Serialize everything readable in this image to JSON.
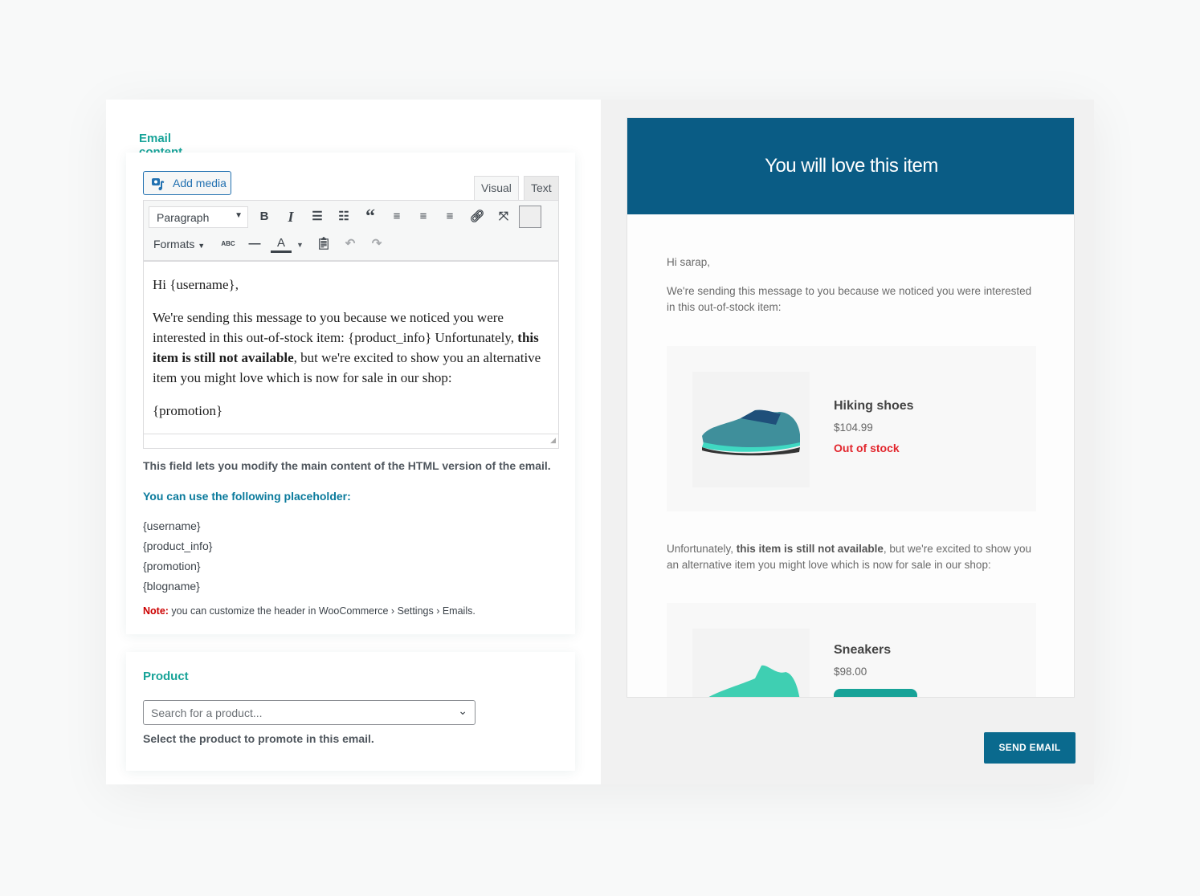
{
  "left": {
    "tab_label": "Email content",
    "add_media_label": "Add media",
    "editor_tabs": [
      "Visual",
      "Text"
    ],
    "toolbar": {
      "format_select": "Paragraph",
      "formats_label": "Formats",
      "strike_label": "ABC",
      "text_color_label": "A"
    },
    "content": {
      "line1": "Hi {username},",
      "p2_a": "We're sending this message to you because we noticed you were interested in this out-of-stock item: {product_info} Unfortunately, ",
      "p2_bold": "this item is still not available",
      "p2_b": ", but we're excited to show you an alternative item you might love which is now for sale in our shop:",
      "line3": "{promotion}"
    },
    "help_text": "This field lets you modify the main content of the HTML version of the email.",
    "placeholder_title": "You can use the following placeholder:",
    "placeholders": [
      "{username}",
      "{product_info}",
      "{promotion}",
      "{blogname}"
    ],
    "note_label": "Note:",
    "note_text": " you can customize the header in WooCommerce › Settings › Emails.",
    "product_title": "Product",
    "product_search_placeholder": "Search for a product...",
    "product_help": "Select the product to promote in this email."
  },
  "preview": {
    "header_title": "You will love this item",
    "header_color": "#0a5c85",
    "greeting": "Hi sarap,",
    "intro": "We're sending this message to you because we noticed you were interested in this out-of-stock item:",
    "products": [
      {
        "name": "Hiking shoes",
        "price": "$104.99",
        "status": "Out of stock"
      },
      {
        "name": "Sneakers",
        "price": "$98.00"
      }
    ],
    "body_a": "Unfortunately, ",
    "body_bold": "this item is still not available",
    "body_b": ", but we're excited to show you an alternative item you might love which is now for sale in our shop:",
    "send_label": "SEND EMAIL"
  }
}
